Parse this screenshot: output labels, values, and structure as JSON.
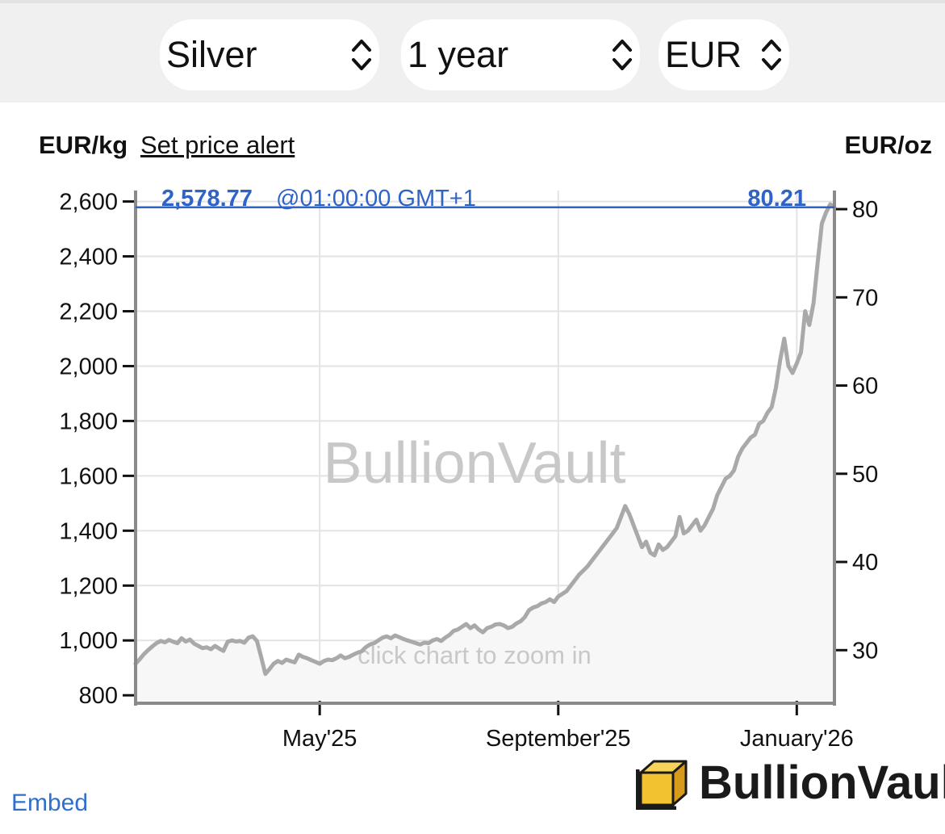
{
  "selectors": {
    "metal": "Silver",
    "range": "1 year",
    "currency": "EUR"
  },
  "chart_header": {
    "unit_left": "EUR/kg",
    "alert_link": "Set price alert",
    "unit_right": "EUR/oz"
  },
  "price_readout": {
    "price_kg": "2,578.77",
    "time": "@01:00:00 GMT+1",
    "price_oz": "80.21"
  },
  "watermark": "BullionVault",
  "hint": "click chart to zoom in",
  "footer": {
    "embed_label": "Embed",
    "logo_text": "BullionVault"
  },
  "colors": {
    "series": "#a9a9a9",
    "price_line": "#2f63c8",
    "grid": "#e3e3e3",
    "axis": "#8a8a8a",
    "area": "#f7f7f7",
    "logo_gold": "#f2c230"
  },
  "chart_data": {
    "type": "line",
    "series": [
      {
        "values": [
          [
            0,
            915
          ],
          [
            2,
            932
          ],
          [
            4,
            950
          ],
          [
            6,
            965
          ],
          [
            8,
            978
          ],
          [
            10,
            990
          ],
          [
            12,
            998
          ],
          [
            14,
            993
          ],
          [
            16,
            1002
          ],
          [
            18,
            995
          ],
          [
            20,
            990
          ],
          [
            22,
            1008
          ],
          [
            24,
            996
          ],
          [
            26,
            1003
          ],
          [
            28,
            988
          ],
          [
            30,
            980
          ],
          [
            32,
            972
          ],
          [
            34,
            975
          ],
          [
            36,
            968
          ],
          [
            38,
            980
          ],
          [
            40,
            970
          ],
          [
            42,
            962
          ],
          [
            44,
            995
          ],
          [
            46,
            1000
          ],
          [
            48,
            996
          ],
          [
            50,
            998
          ],
          [
            52,
            992
          ],
          [
            54,
            1010
          ],
          [
            56,
            1015
          ],
          [
            58,
            998
          ],
          [
            60,
            940
          ],
          [
            62,
            878
          ],
          [
            64,
            895
          ],
          [
            66,
            915
          ],
          [
            68,
            925
          ],
          [
            70,
            918
          ],
          [
            72,
            930
          ],
          [
            74,
            925
          ],
          [
            76,
            920
          ],
          [
            78,
            948
          ],
          [
            80,
            940
          ],
          [
            82,
            935
          ],
          [
            84,
            928
          ],
          [
            86,
            922
          ],
          [
            88,
            915
          ],
          [
            90,
            925
          ],
          [
            92,
            930
          ],
          [
            94,
            928
          ],
          [
            96,
            935
          ],
          [
            98,
            945
          ],
          [
            100,
            935
          ],
          [
            102,
            940
          ],
          [
            104,
            948
          ],
          [
            106,
            955
          ],
          [
            108,
            960
          ],
          [
            110,
            975
          ],
          [
            112,
            985
          ],
          [
            114,
            990
          ],
          [
            116,
            1000
          ],
          [
            118,
            1010
          ],
          [
            120,
            1015
          ],
          [
            122,
            1008
          ],
          [
            124,
            1018
          ],
          [
            126,
            1012
          ],
          [
            128,
            1005
          ],
          [
            130,
            1000
          ],
          [
            132,
            995
          ],
          [
            134,
            990
          ],
          [
            136,
            985
          ],
          [
            138,
            992
          ],
          [
            140,
            990
          ],
          [
            142,
            1000
          ],
          [
            144,
            1005
          ],
          [
            146,
            998
          ],
          [
            148,
            1010
          ],
          [
            150,
            1020
          ],
          [
            152,
            1035
          ],
          [
            154,
            1040
          ],
          [
            156,
            1050
          ],
          [
            158,
            1060
          ],
          [
            160,
            1045
          ],
          [
            162,
            1055
          ],
          [
            164,
            1040
          ],
          [
            166,
            1030
          ],
          [
            168,
            1045
          ],
          [
            170,
            1050
          ],
          [
            172,
            1058
          ],
          [
            174,
            1060
          ],
          [
            176,
            1055
          ],
          [
            178,
            1045
          ],
          [
            180,
            1050
          ],
          [
            182,
            1062
          ],
          [
            184,
            1070
          ],
          [
            186,
            1085
          ],
          [
            188,
            1110
          ],
          [
            190,
            1120
          ],
          [
            192,
            1125
          ],
          [
            194,
            1135
          ],
          [
            196,
            1140
          ],
          [
            198,
            1150
          ],
          [
            200,
            1140
          ],
          [
            202,
            1160
          ],
          [
            204,
            1170
          ],
          [
            206,
            1180
          ],
          [
            208,
            1200
          ],
          [
            210,
            1220
          ],
          [
            212,
            1240
          ],
          [
            214,
            1255
          ],
          [
            216,
            1270
          ],
          [
            218,
            1290
          ],
          [
            220,
            1310
          ],
          [
            222,
            1330
          ],
          [
            224,
            1350
          ],
          [
            226,
            1370
          ],
          [
            228,
            1390
          ],
          [
            230,
            1410
          ],
          [
            232,
            1450
          ],
          [
            234,
            1490
          ],
          [
            236,
            1460
          ],
          [
            238,
            1420
          ],
          [
            240,
            1380
          ],
          [
            242,
            1340
          ],
          [
            244,
            1360
          ],
          [
            246,
            1320
          ],
          [
            248,
            1310
          ],
          [
            250,
            1350
          ],
          [
            252,
            1330
          ],
          [
            254,
            1340
          ],
          [
            256,
            1360
          ],
          [
            258,
            1380
          ],
          [
            260,
            1450
          ],
          [
            262,
            1390
          ],
          [
            264,
            1400
          ],
          [
            266,
            1420
          ],
          [
            268,
            1440
          ],
          [
            270,
            1400
          ],
          [
            272,
            1420
          ],
          [
            274,
            1450
          ],
          [
            276,
            1480
          ],
          [
            278,
            1530
          ],
          [
            280,
            1560
          ],
          [
            282,
            1590
          ],
          [
            284,
            1600
          ],
          [
            286,
            1620
          ],
          [
            288,
            1670
          ],
          [
            290,
            1700
          ],
          [
            292,
            1720
          ],
          [
            294,
            1740
          ],
          [
            296,
            1750
          ],
          [
            298,
            1790
          ],
          [
            300,
            1800
          ],
          [
            302,
            1830
          ],
          [
            304,
            1850
          ],
          [
            306,
            1920
          ],
          [
            308,
            2020
          ],
          [
            310,
            2100
          ],
          [
            312,
            2000
          ],
          [
            314,
            1975
          ],
          [
            316,
            2010
          ],
          [
            318,
            2050
          ],
          [
            320,
            2200
          ],
          [
            322,
            2150
          ],
          [
            324,
            2230
          ],
          [
            326,
            2380
          ],
          [
            328,
            2520
          ],
          [
            330,
            2560
          ],
          [
            332,
            2590
          ],
          [
            334,
            2579
          ]
        ]
      }
    ],
    "x_unit": "days",
    "x_range": [
      0,
      334
    ],
    "y_left": {
      "label": "EUR/kg",
      "ticks": [
        800,
        1000,
        1200,
        1400,
        1600,
        1800,
        2000,
        2200,
        2400,
        2600
      ],
      "range": [
        780,
        2640
      ]
    },
    "y_right": {
      "label": "EUR/oz",
      "ticks": [
        30,
        40,
        50,
        60,
        70,
        80
      ],
      "range": [
        24.26,
        82.11
      ]
    },
    "x_ticks": [
      {
        "x": 88,
        "label": "May'25"
      },
      {
        "x": 202,
        "label": "September'25"
      },
      {
        "x": 316,
        "label": "January'26"
      }
    ],
    "current_value": 2578.77,
    "grid": true
  }
}
